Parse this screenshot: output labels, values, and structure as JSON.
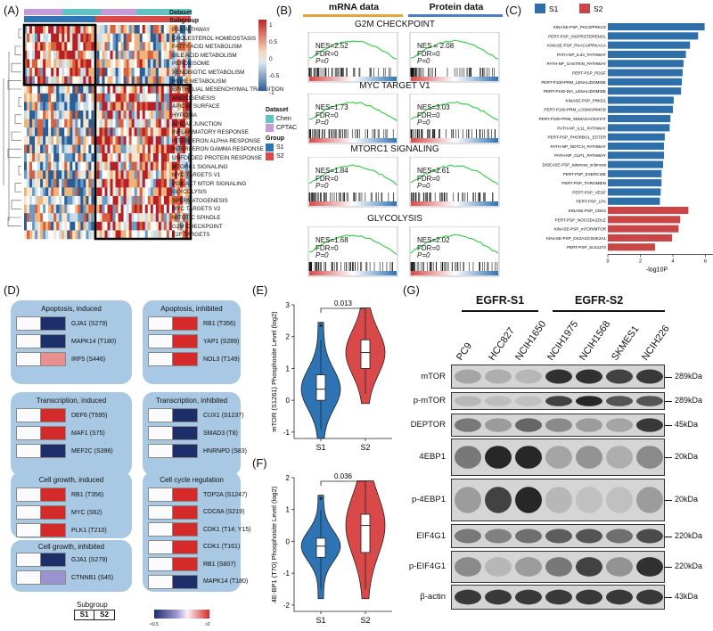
{
  "panels": {
    "A": "(A)",
    "B": "(B)",
    "C": "(C)",
    "D": "(D)",
    "E": "(E)",
    "F": "(F)",
    "G": "(G)"
  },
  "panelA": {
    "top_labels": [
      "Dataset",
      "Subgroup"
    ],
    "pathways": [
      "P53 PATHWAY",
      "CHOLESTEROL HOMEOSTASIS",
      "FATTY ACID METABOLISM",
      "BILE ACID METABOLISM",
      "PEROXISOME",
      "XENOBIOTIC METABOLISM",
      "HEME METABOLISM",
      "EPITHELIAL MESENCHYMAL TRANSITION",
      "ANGIOGENESIS",
      "APICAL SURFACE",
      "HYPOXIA",
      "APICAL JUNCTION",
      "INFLAMMATORY RESPONSE",
      "INTERFERON ALPHA RESPONSE",
      "INTERFERON GAMMA RESPONSE",
      "UNFOLDED PROTEIN RESPONSE",
      "MTORC1 SIGNALING",
      "MYC TARGETS V1",
      "PI3K AKT MTOR SIGNALING",
      "GLYCOLYSIS",
      "SPERMATOGENESIS",
      "MYC TARGETS V2",
      "MITOTIC SPINDLE",
      "G2M CHECKPOINT",
      "E2F TARGETS"
    ],
    "colorbar_ticks": [
      "1",
      "0.5",
      "0",
      "-0.5",
      "-1"
    ],
    "legend": {
      "dataset_title": "Dataset",
      "dataset_items": [
        {
          "label": "Chen",
          "color": "#5ec4c4"
        },
        {
          "label": "CPTAC",
          "color": "#c79bd8"
        }
      ],
      "group_title": "Group",
      "group_items": [
        {
          "label": "S1",
          "color": "#2e74b5"
        },
        {
          "label": "S2",
          "color": "#d9494a"
        }
      ]
    }
  },
  "panelB": {
    "col_headers": [
      "mRNA data",
      "Protein data"
    ],
    "rows": [
      {
        "title": "G2M CHECKPOINT",
        "mrna": {
          "nes": "NES=2.52",
          "fdr": "FDR=0",
          "p": "P=0"
        },
        "protein": {
          "nes": "NES = 2.08",
          "fdr": "FDR=0",
          "p": "P=0"
        }
      },
      {
        "title": "MYC TARGET V1",
        "mrna": {
          "nes": "NES=1.73",
          "fdr": "FDR=0",
          "p": "P=0"
        },
        "protein": {
          "nes": "NES=3.03",
          "fdr": "FDR=0",
          "p": "P=0"
        }
      },
      {
        "title": "MTORC1 SIGNALING",
        "mrna": {
          "nes": "NES=1.84",
          "fdr": "FDR=0",
          "p": "P=0"
        },
        "protein": {
          "nes": "NES=2.61",
          "fdr": "FDR=0",
          "p": "P=0"
        }
      },
      {
        "title": "GLYCOLYSIS",
        "mrna": {
          "nes": "NES=1.68",
          "fdr": "FDR=0",
          "p": "P=0"
        },
        "protein": {
          "nes": "NES=2.02",
          "fdr": "FDR=0",
          "p": "P=0"
        }
      }
    ]
  },
  "panelD": {
    "tiles": [
      {
        "title": "Apoptosis, induced",
        "rows": [
          {
            "label": "GJA1 (S279)",
            "color": "#1c2f6b"
          },
          {
            "label": "MAPK14 (T180)",
            "color": "#1c2f6b"
          },
          {
            "label": "IRF5 (S446)",
            "color": "#e8908e"
          }
        ]
      },
      {
        "title": "Apoptosis, inhibited",
        "rows": [
          {
            "label": "RB1 (T356)",
            "color": "#d42a2a"
          },
          {
            "label": "YAP1 (S289)",
            "color": "#d42a2a"
          },
          {
            "label": "NOL3 (T149)",
            "color": "#d42a2a"
          }
        ]
      },
      {
        "title": "Transcription, induced",
        "rows": [
          {
            "label": "DEF6 (T595)",
            "color": "#d42a2a"
          },
          {
            "label": "MAF1 (S75)",
            "color": "#d42a2a"
          },
          {
            "label": "MEF2C (S396)",
            "color": "#1c2f6b"
          }
        ]
      },
      {
        "title": "Transcription, inhibited",
        "rows": [
          {
            "label": "CUX1 (S1237)",
            "color": "#1c2f6b"
          },
          {
            "label": "SMAD3 (T8)",
            "color": "#1c2f6b"
          },
          {
            "label": "HNRNPD (S83)",
            "color": "#1c2f6b"
          }
        ]
      },
      {
        "title": "Cell growth, induced",
        "rows": [
          {
            "label": "RB1 (T356)",
            "color": "#d42a2a"
          },
          {
            "label": "MYC (S62)",
            "color": "#d42a2a"
          },
          {
            "label": "PLK1 (T210)",
            "color": "#d42a2a"
          }
        ]
      },
      {
        "title": "Cell cycle regulation",
        "rows": [
          {
            "label": "TOP2A (S1247)",
            "color": "#d42a2a"
          },
          {
            "label": "CDC8A (S219)",
            "color": "#d42a2a"
          },
          {
            "label": "CDK1 (T14; Y15)",
            "color": "#d42a2a"
          },
          {
            "label": "CDK1 (T161)",
            "color": "#d42a2a"
          },
          {
            "label": "RB1 (S807)",
            "color": "#d42a2a"
          },
          {
            "label": "MAPK14 (T180)",
            "color": "#1c2f6b"
          }
        ]
      },
      {
        "title": "Cell growth, inhibited",
        "rows": [
          {
            "label": "GJA1 (S279)",
            "color": "#1c2f6b"
          },
          {
            "label": "CTNNB1 (S45)",
            "color": "#9b93cf"
          }
        ]
      }
    ],
    "subgroup_title": "Subgroup",
    "subgroup_labels": [
      "S1",
      "S2"
    ],
    "scale_min": "<0.5",
    "scale_max": ">2"
  },
  "chart_data": [
    {
      "type": "bar",
      "panel": "C",
      "title": "",
      "xlabel": "-log10P",
      "ylabel": "",
      "xlim": [
        0,
        6.3
      ],
      "xticks": [
        "0",
        "2",
        "4",
        "6"
      ],
      "legend": [
        {
          "name": "S1",
          "color": "#2e6faa"
        },
        {
          "name": "S2",
          "color": "#c94646"
        }
      ],
      "categories": [
        "KINASE-PSP_PKCZ/PRKCZ",
        "PERT-PSP_ISOPROTERENOL",
        "KINASE-PSP_PKACA/PRKACA",
        "PATH-NP_IL33_PATHWAY",
        "PATH-NP_GASTRIN_PATHWAY",
        "PERT-PSP_PDGF",
        "PERT-P100-PRM_LENALIDOMIDE",
        "PERT-P100-DIA_LENALIDOMIDE",
        "KINASE-PSP_PRKD1",
        "PERT-P100-PRM_LOSMAPIMOD",
        "PERT-P100-PRM_SEMAGACESTAT",
        "PATH-NP_IL11_PATHWAY",
        "PERT-PSP_PHORBOL_ESTER",
        "PATH-NP_NOTCH_PATHWAY",
        "PATH-NP_GLP1_PATHWAY",
        "DISEASE-PSP_tuberous_sclerosis",
        "PERT-PSP_EXERCISE",
        "PERT-PSP_THROMBIN",
        "PERT-PSP_VEGF",
        "PERT-PSP_LPA",
        "KINASE-PSP_CDK2",
        "PERT-PSP_NOCODAZOLE",
        "KINASE-PSP_mTOR/MTOR",
        "KINASE-PSP_CK2A1/CSNK2A1",
        "PERT-PSP_SU11274"
      ],
      "values": [
        5.95,
        5.55,
        5.05,
        4.8,
        4.65,
        4.6,
        4.55,
        4.5,
        4.05,
        4.0,
        3.85,
        3.8,
        3.5,
        3.45,
        3.45,
        3.4,
        3.3,
        3.3,
        3.25,
        3.2,
        4.95,
        4.45,
        4.35,
        3.95,
        2.9
      ],
      "groups": [
        "S1",
        "S1",
        "S1",
        "S1",
        "S1",
        "S1",
        "S1",
        "S1",
        "S1",
        "S1",
        "S1",
        "S1",
        "S1",
        "S1",
        "S1",
        "S1",
        "S1",
        "S1",
        "S1",
        "S1",
        "S2",
        "S2",
        "S2",
        "S2",
        "S2"
      ]
    },
    {
      "type": "violin",
      "panel": "E",
      "ylabel": "mTOR (S1261) Phosphosite Level (log2)",
      "categories": [
        "S1",
        "S2"
      ],
      "ylim": [
        -1.2,
        3.0
      ],
      "yticks": [
        "-1",
        "0",
        "1",
        "2",
        "3"
      ],
      "pvalue": "0.013",
      "boxes": [
        {
          "name": "S1",
          "min": -0.9,
          "q1": 0.0,
          "median": 0.35,
          "q3": 0.8,
          "max": 1.9,
          "outlier": 2.35,
          "color": "#2e74b5"
        },
        {
          "name": "S2",
          "min": 0.2,
          "q1": 1.0,
          "median": 1.5,
          "q3": 1.9,
          "max": 2.8,
          "color": "#d9494a"
        }
      ]
    },
    {
      "type": "violin",
      "panel": "F",
      "ylabel": "4E-BP1 (T70) Phosphosite Level (log2)",
      "categories": [
        "S1",
        "S2"
      ],
      "ylim": [
        -2.2,
        2.0
      ],
      "yticks": [
        "-2",
        "-1",
        "0",
        "1",
        "2"
      ],
      "pvalue": "0.036",
      "boxes": [
        {
          "name": "S1",
          "min": -1.5,
          "q1": -0.5,
          "median": -0.15,
          "q3": 0.1,
          "max": 1.0,
          "outlier": 1.35,
          "color": "#2e74b5"
        },
        {
          "name": "S2",
          "min": -1.5,
          "q1": -0.35,
          "median": 0.5,
          "q3": 0.85,
          "max": 1.8,
          "color": "#d9494a"
        }
      ]
    }
  ],
  "panelG": {
    "groups": [
      "EGFR-S1",
      "EGFR-S2"
    ],
    "cell_lines": [
      "PC9",
      "HCC827",
      "NCIH1650",
      "NCIH1975",
      "NCIH1568",
      "SKMES1",
      "NCIH226"
    ],
    "bands": [
      {
        "label": "mTOR",
        "kda": "289kDa"
      },
      {
        "label": "p-mTOR",
        "kda": "289kDa"
      },
      {
        "label": "DEPTOR",
        "kda": "45kDa"
      },
      {
        "label": "4EBP1",
        "kda": "20kDa"
      },
      {
        "label": "p-4EBP1",
        "kda": "20kDa"
      },
      {
        "label": "EIF4G1",
        "kda": "220kDa"
      },
      {
        "label": "p-EIF4G1",
        "kda": "220kDa"
      },
      {
        "label": "β-actin",
        "kda": "43kDa"
      }
    ]
  }
}
